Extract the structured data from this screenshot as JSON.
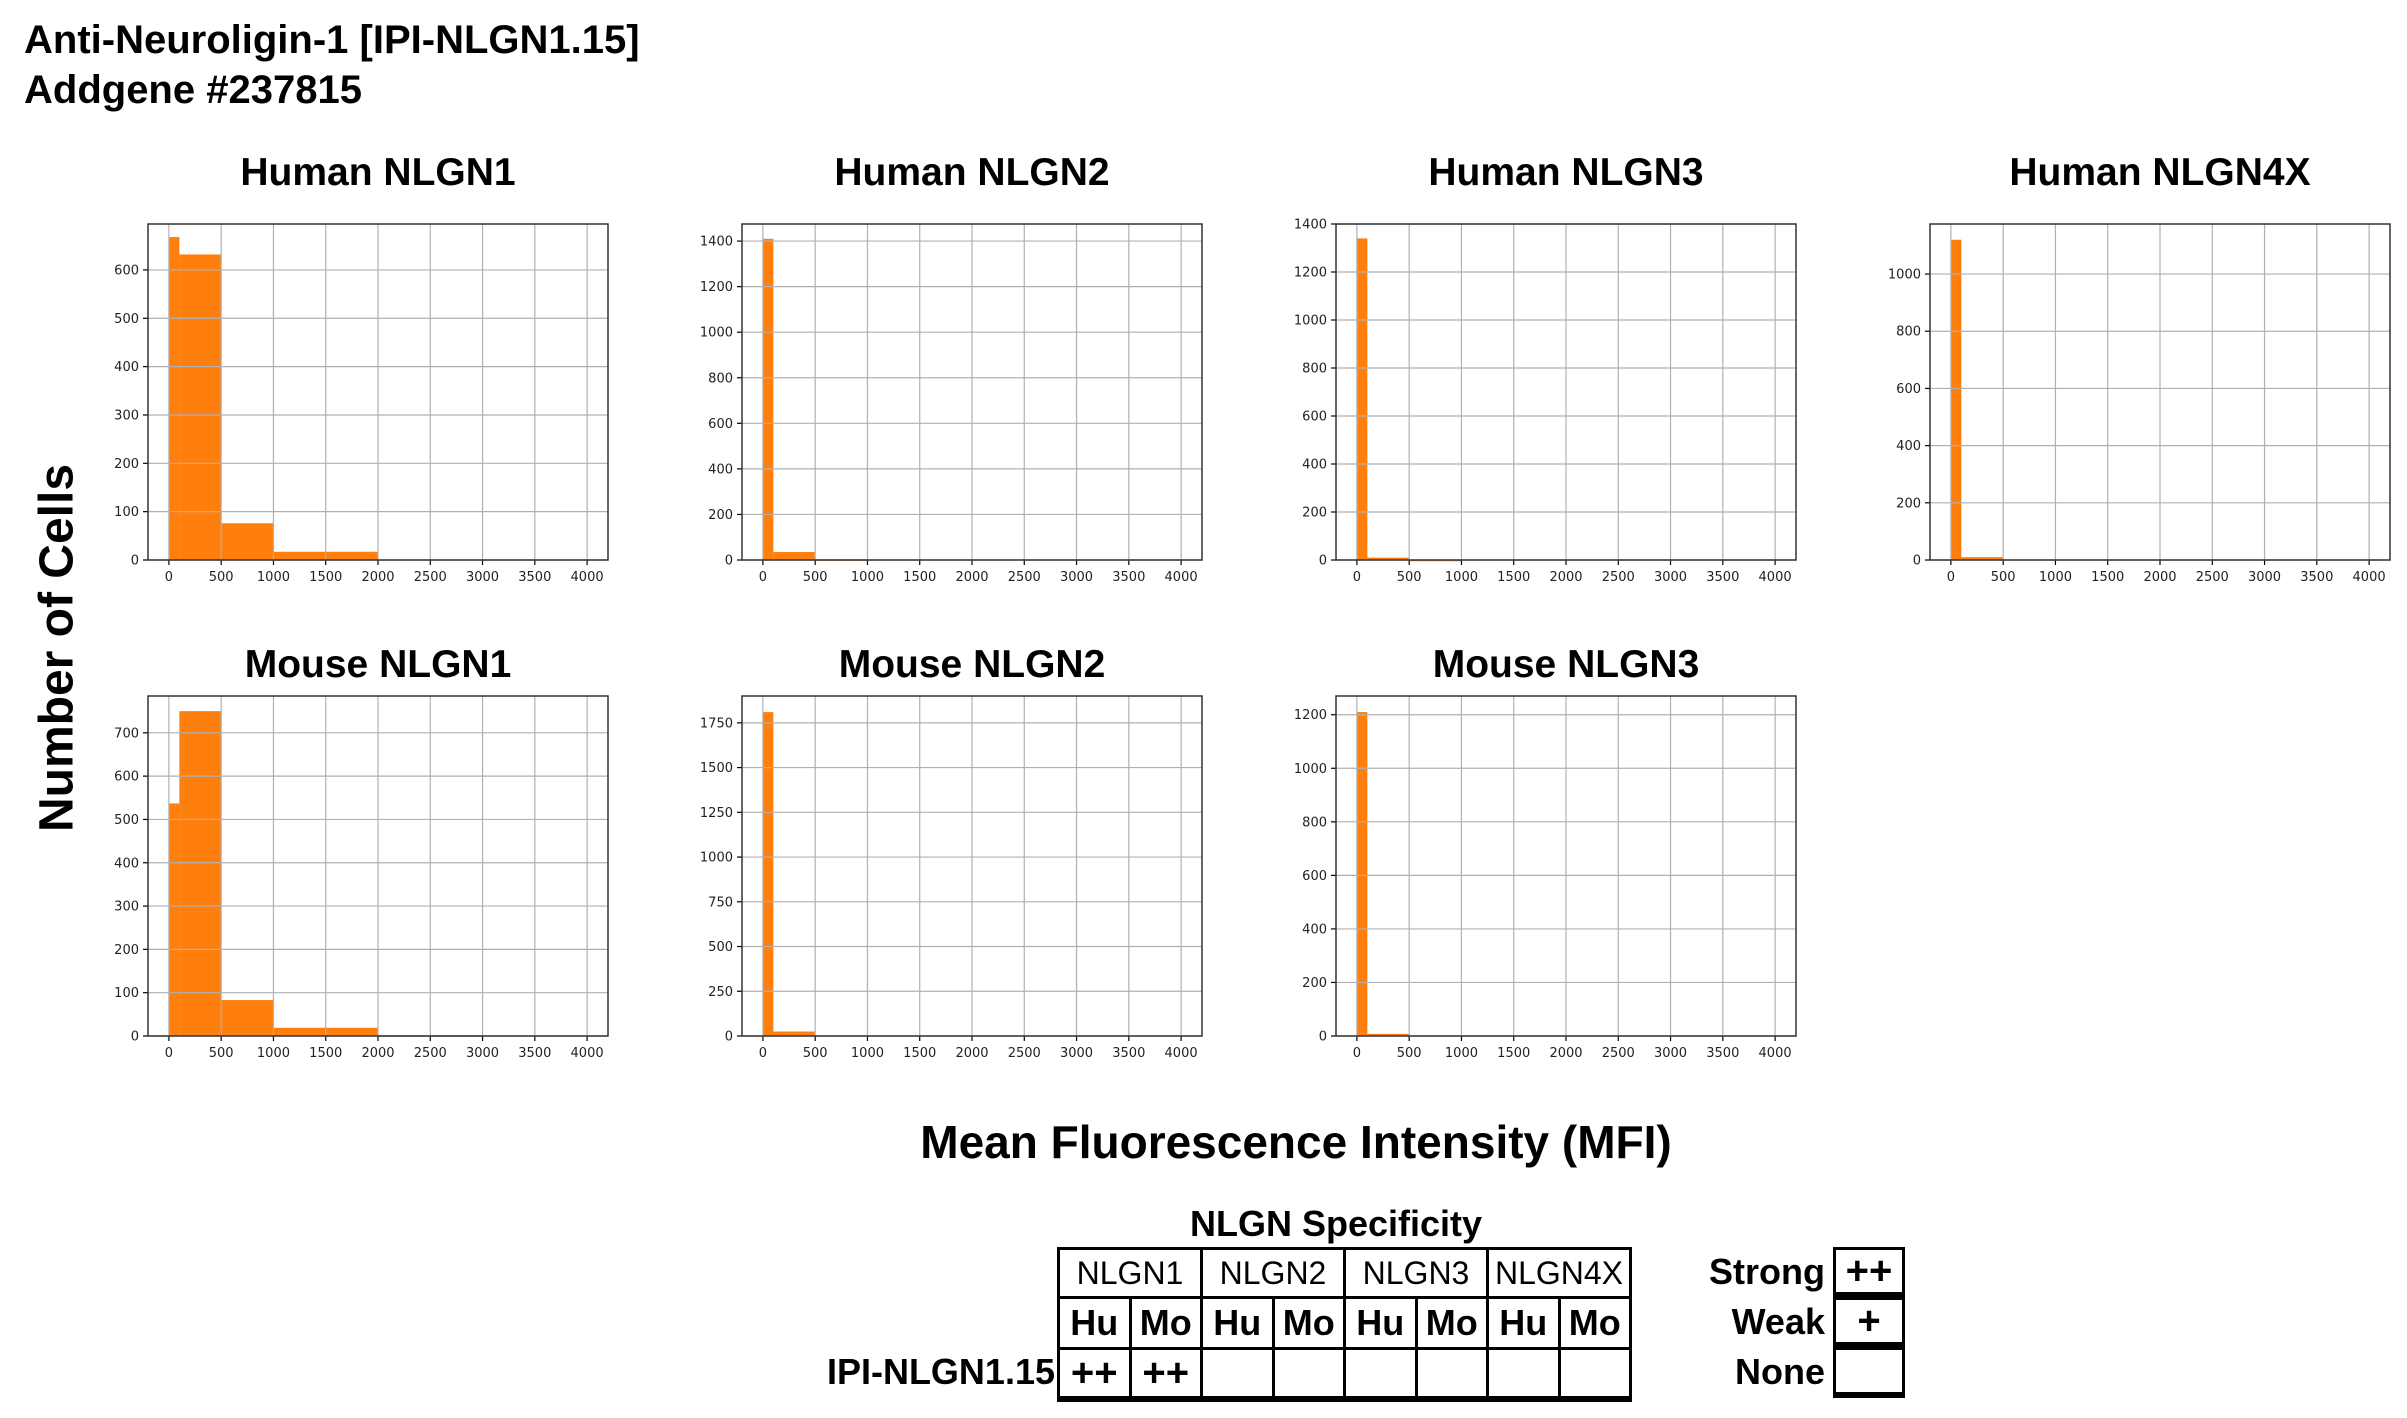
{
  "header": {
    "line1": "Anti-Neuroligin-1 [IPI-NLGN1.15]",
    "line2": "Addgene #237815"
  },
  "axis_labels": {
    "y": "Number of Cells",
    "x": "Mean Fluorescence Intensity (MFI)"
  },
  "colors": {
    "bar": "#ff7f0e",
    "grid": "#b0b0b0"
  },
  "chart_data": [
    {
      "type": "bar",
      "title": "Human NLGN1",
      "bin_edges": [
        0,
        100,
        500,
        1000,
        2000,
        3000,
        4000
      ],
      "values": [
        668,
        632,
        76,
        17,
        0,
        0
      ],
      "xlim": [
        -200,
        4200
      ],
      "ylim": [
        0,
        695
      ],
      "xticks": [
        0,
        500,
        1000,
        1500,
        2000,
        2500,
        3000,
        3500,
        4000
      ],
      "yticks": [
        0,
        100,
        200,
        300,
        400,
        500,
        600
      ],
      "grid": true
    },
    {
      "type": "bar",
      "title": "Human NLGN2",
      "bin_edges": [
        0,
        100,
        500,
        1000,
        2000,
        3000,
        4000
      ],
      "values": [
        1410,
        35,
        3,
        0,
        0,
        0
      ],
      "xlim": [
        -200,
        4200
      ],
      "ylim": [
        0,
        1475
      ],
      "xticks": [
        0,
        500,
        1000,
        1500,
        2000,
        2500,
        3000,
        3500,
        4000
      ],
      "yticks": [
        0,
        200,
        400,
        600,
        800,
        1000,
        1200,
        1400
      ],
      "grid": true
    },
    {
      "type": "bar",
      "title": "Human NLGN3",
      "bin_edges": [
        0,
        100,
        500,
        1000,
        2000,
        3000,
        4000
      ],
      "values": [
        1340,
        10,
        1,
        0,
        0,
        0
      ],
      "xlim": [
        -200,
        4200
      ],
      "ylim": [
        0,
        1400
      ],
      "xticks": [
        0,
        500,
        1000,
        1500,
        2000,
        2500,
        3000,
        3500,
        4000
      ],
      "yticks": [
        0,
        200,
        400,
        600,
        800,
        1000,
        1200,
        1400
      ],
      "grid": true
    },
    {
      "type": "bar",
      "title": "Human NLGN4X",
      "bin_edges": [
        0,
        100,
        500,
        1000,
        2000,
        3000,
        4000
      ],
      "values": [
        1120,
        10,
        0,
        0,
        0,
        0
      ],
      "xlim": [
        -200,
        4200
      ],
      "ylim": [
        0,
        1175
      ],
      "xticks": [
        0,
        500,
        1000,
        1500,
        2000,
        2500,
        3000,
        3500,
        4000
      ],
      "yticks": [
        0,
        200,
        400,
        600,
        800,
        1000
      ],
      "grid": true
    },
    {
      "type": "bar",
      "title": "Mouse NLGN1",
      "bin_edges": [
        0,
        100,
        500,
        1000,
        2000,
        3000,
        4000
      ],
      "values": [
        537,
        750,
        83,
        19,
        2,
        0
      ],
      "xlim": [
        -200,
        4200
      ],
      "ylim": [
        0,
        785
      ],
      "xticks": [
        0,
        500,
        1000,
        1500,
        2000,
        2500,
        3000,
        3500,
        4000
      ],
      "yticks": [
        0,
        100,
        200,
        300,
        400,
        500,
        600,
        700
      ],
      "grid": true
    },
    {
      "type": "bar",
      "title": "Mouse NLGN2",
      "bin_edges": [
        0,
        100,
        500,
        1000,
        2000,
        3000,
        4000
      ],
      "values": [
        1810,
        25,
        0,
        0,
        0,
        0
      ],
      "xlim": [
        -200,
        4200
      ],
      "ylim": [
        0,
        1900
      ],
      "xticks": [
        0,
        500,
        1000,
        1500,
        2000,
        2500,
        3000,
        3500,
        4000
      ],
      "yticks": [
        0,
        250,
        500,
        750,
        1000,
        1250,
        1500,
        1750
      ],
      "grid": true
    },
    {
      "type": "bar",
      "title": "Mouse NLGN3",
      "bin_edges": [
        0,
        100,
        500,
        1000,
        2000,
        3000,
        4000
      ],
      "values": [
        1210,
        8,
        0,
        0,
        0,
        0
      ],
      "xlim": [
        -200,
        4200
      ],
      "ylim": [
        0,
        1270
      ],
      "xticks": [
        0,
        500,
        1000,
        1500,
        2000,
        2500,
        3000,
        3500,
        4000
      ],
      "yticks": [
        0,
        200,
        400,
        600,
        800,
        1000,
        1200
      ],
      "grid": true
    }
  ],
  "specificity": {
    "title": "NLGN Specificity",
    "groups": [
      "NLGN1",
      "NLGN2",
      "NLGN3",
      "NLGN4X"
    ],
    "subheaders": [
      "Hu",
      "Mo",
      "Hu",
      "Mo",
      "Hu",
      "Mo",
      "Hu",
      "Mo"
    ],
    "row_label": "IPI-NLGN1.15",
    "values": [
      "++",
      "++",
      "",
      "",
      "",
      "",
      "",
      ""
    ]
  },
  "legend": [
    {
      "label": "Strong",
      "symbol": "++"
    },
    {
      "label": "Weak",
      "symbol": "+"
    },
    {
      "label": "None",
      "symbol": ""
    }
  ]
}
